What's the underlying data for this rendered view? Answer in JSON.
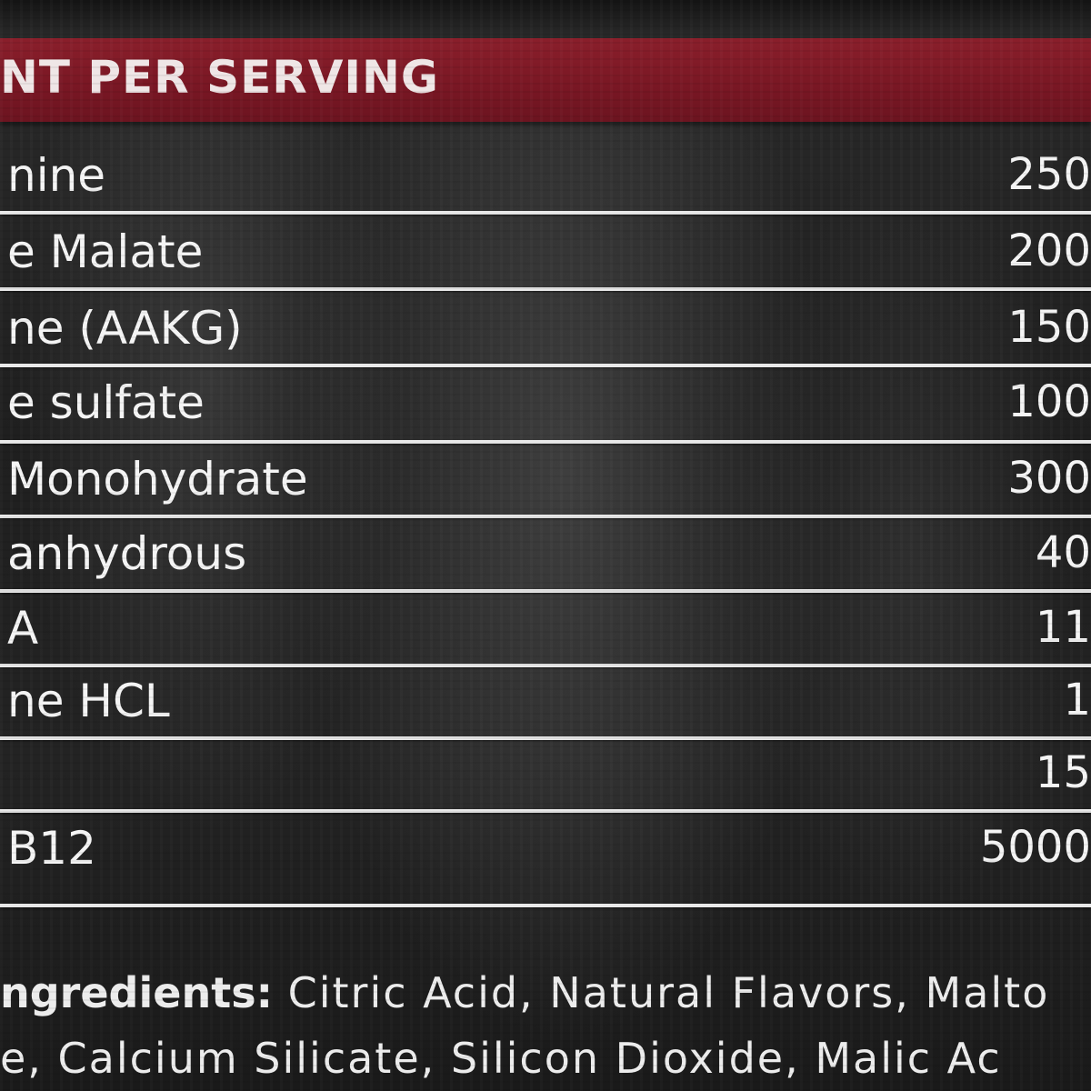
{
  "header": {
    "title": "NT PER SERVING"
  },
  "rows": [
    {
      "name": "nine",
      "amount": "250"
    },
    {
      "name": "e Malate",
      "amount": "200"
    },
    {
      "name": "ne (AAKG)",
      "amount": "150"
    },
    {
      "name": "e sulfate",
      "amount": "100"
    },
    {
      "name": " Monohydrate",
      "amount": "300"
    },
    {
      "name": " anhydrous",
      "amount": "40"
    },
    {
      "name": "A",
      "amount": "11"
    },
    {
      "name": "ne HCL",
      "amount": "1"
    },
    {
      "name": "",
      "amount": "15"
    },
    {
      "name": "B12",
      "amount": "5000"
    }
  ],
  "ingredients": {
    "lead": "ngredients:",
    "line1_rest": " Citric Acid, Natural Flavors, Malto",
    "line2": "e, Calcium Silicate, Silicon Dioxide, Malic Ac"
  },
  "colors": {
    "header_band": "#7a1724",
    "background": "#1f1f1f",
    "text": "#f4f4f4",
    "divider": "#e8e8e8"
  }
}
